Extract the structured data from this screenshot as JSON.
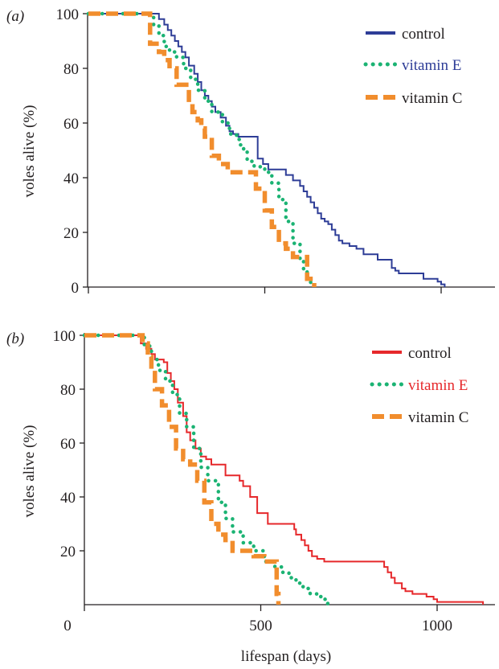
{
  "figure": {
    "xlabel": "lifespan (days)",
    "x_zero_label": "0"
  },
  "chart_data": [
    {
      "panel_label": "(a)",
      "type": "line",
      "subtype": "step",
      "xlabel": "",
      "ylabel": "voles alive (%)",
      "xlim": [
        0,
        1200
      ],
      "ylim": [
        0,
        100
      ],
      "xticks": [
        0,
        500,
        1000
      ],
      "xtick_labels": [
        "",
        "",
        ""
      ],
      "yticks": [
        0,
        20,
        40,
        60,
        80,
        100
      ],
      "ytick_labels": [
        "0",
        "20",
        "40",
        "60",
        "80",
        "100"
      ],
      "grid": false,
      "legend_position": "top-right",
      "series": [
        {
          "name": "control",
          "color": "#2e3d97",
          "style": "solid",
          "label_color": "#231f20",
          "x": [
            0,
            180,
            200,
            215,
            225,
            235,
            245,
            255,
            265,
            275,
            285,
            300,
            310,
            320,
            330,
            340,
            350,
            360,
            375,
            390,
            400,
            410,
            425,
            440,
            460,
            480,
            495,
            510,
            520,
            560,
            580,
            600,
            610,
            620,
            630,
            640,
            650,
            660,
            670,
            680,
            690,
            700,
            710,
            720,
            740,
            760,
            780,
            820,
            860,
            870,
            880,
            885,
            890,
            900,
            950,
            990,
            1000,
            1010
          ],
          "y": [
            100,
            100,
            98,
            96,
            94,
            92,
            90,
            88,
            86,
            84,
            81,
            78,
            75,
            72,
            70,
            68,
            66,
            64,
            62,
            59,
            57,
            56,
            55,
            55,
            55,
            47,
            45,
            43,
            43,
            41,
            39,
            37,
            35,
            33,
            31,
            29,
            27,
            25,
            24,
            23,
            21,
            19,
            17,
            16,
            15,
            14,
            12,
            10,
            7,
            6,
            5,
            5,
            5,
            5,
            3,
            2,
            1,
            0
          ]
        },
        {
          "name": "vitamin E",
          "color": "#1bb373",
          "style": "dotted",
          "label_color": "#2e3d97",
          "x": [
            0,
            170,
            185,
            200,
            215,
            230,
            250,
            270,
            290,
            310,
            330,
            350,
            380,
            400,
            420,
            430,
            440,
            450,
            470,
            500,
            520,
            540,
            560,
            580,
            600,
            610,
            620,
            630
          ],
          "y": [
            100,
            100,
            96,
            92,
            88,
            86,
            84,
            80,
            76,
            72,
            68,
            64,
            60,
            56,
            54,
            52,
            50,
            46,
            44,
            42,
            38,
            32,
            24,
            16,
            10,
            6,
            2,
            0
          ]
        },
        {
          "name": "vitamin C",
          "color": "#f18d2d",
          "style": "dashed",
          "label_color": "#231f20",
          "x": [
            0,
            155,
            175,
            200,
            215,
            230,
            250,
            285,
            295,
            310,
            320,
            330,
            350,
            370,
            395,
            420,
            435,
            450,
            475,
            500,
            520,
            540,
            560,
            580,
            600,
            620,
            640
          ],
          "y": [
            100,
            100,
            89,
            86,
            83,
            80,
            74,
            67,
            64,
            61,
            58,
            55,
            48,
            45,
            42,
            42,
            42,
            42,
            36,
            28,
            22,
            16,
            14,
            11,
            11,
            3,
            0
          ]
        }
      ]
    },
    {
      "panel_label": "(b)",
      "type": "line",
      "subtype": "step",
      "xlabel": "lifespan (days)",
      "ylabel": "voles alive (%)",
      "xlim": [
        0,
        1200
      ],
      "ylim": [
        0,
        100
      ],
      "xticks": [
        0,
        500,
        1000
      ],
      "xtick_labels": [
        "0",
        "500",
        "1000"
      ],
      "yticks": [
        20,
        40,
        60,
        80,
        100
      ],
      "ytick_labels": [
        "20",
        "40",
        "60",
        "80",
        "100"
      ],
      "grid": false,
      "legend_position": "top-right",
      "series": [
        {
          "name": "control",
          "color": "#e6282b",
          "style": "solid",
          "label_color": "#231f20",
          "x": [
            0,
            140,
            160,
            175,
            190,
            200,
            225,
            235,
            245,
            255,
            265,
            280,
            290,
            300,
            315,
            330,
            345,
            360,
            380,
            400,
            420,
            430,
            440,
            450,
            470,
            490,
            520,
            580,
            595,
            600,
            615,
            625,
            635,
            645,
            660,
            680,
            700,
            750,
            800,
            840,
            850,
            860,
            870,
            880,
            900,
            910,
            930,
            970,
            990,
            1000,
            1020,
            1060,
            1100,
            1130
          ],
          "y": [
            100,
            100,
            97,
            95,
            93,
            91,
            90,
            86,
            83,
            80,
            75,
            70,
            64,
            61,
            58,
            55,
            54,
            52,
            52,
            48,
            48,
            48,
            46,
            44,
            40,
            34,
            30,
            30,
            28,
            26,
            24,
            22,
            20,
            18,
            17,
            16,
            16,
            16,
            16,
            16,
            14,
            12,
            10,
            8,
            6,
            5,
            4,
            3,
            2,
            1,
            1,
            1,
            1,
            0
          ]
        },
        {
          "name": "vitamin E",
          "color": "#1bb373",
          "style": "dotted",
          "label_color": "#e6282b",
          "x": [
            0,
            150,
            170,
            190,
            210,
            230,
            250,
            270,
            290,
            310,
            330,
            350,
            380,
            400,
            420,
            450,
            480,
            510,
            540,
            560,
            580,
            600,
            620,
            640,
            660,
            680,
            690
          ],
          "y": [
            100,
            100,
            96,
            91,
            87,
            83,
            78,
            71,
            66,
            58,
            51,
            46,
            38,
            32,
            27,
            23,
            20,
            16,
            14,
            12,
            10,
            8,
            6,
            4,
            3,
            2,
            0
          ]
        },
        {
          "name": "vitamin C",
          "color": "#f18d2d",
          "style": "dashed",
          "label_color": "#231f20",
          "x": [
            0,
            150,
            165,
            180,
            190,
            200,
            220,
            240,
            260,
            280,
            300,
            320,
            340,
            360,
            380,
            400,
            420,
            450,
            480,
            510,
            530,
            545,
            550
          ],
          "y": [
            100,
            100,
            97,
            92,
            86,
            80,
            74,
            66,
            58,
            54,
            52,
            46,
            38,
            30,
            26,
            24,
            20,
            20,
            18,
            16,
            16,
            4,
            0
          ]
        }
      ]
    }
  ]
}
